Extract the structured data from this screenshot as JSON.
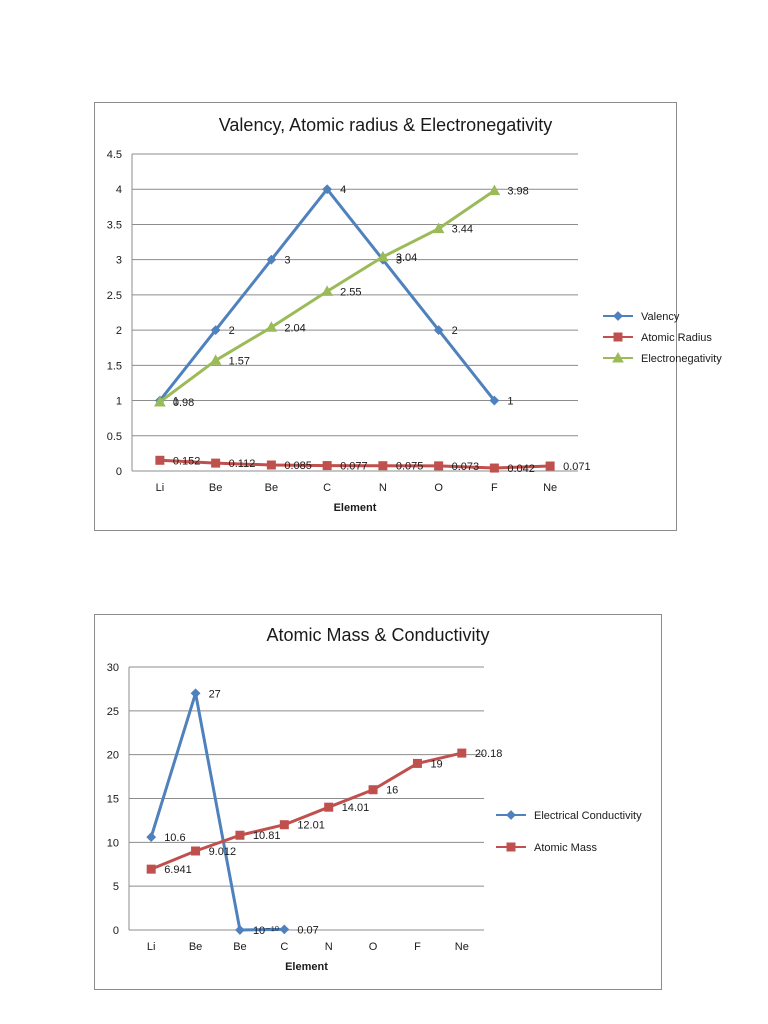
{
  "chart_data": [
    {
      "type": "line",
      "title": "Valency, Atomic radius & Electronegativity",
      "xlabel": "Element",
      "ylabel": "",
      "categories": [
        "Li",
        "Be",
        "Be",
        "C",
        "N",
        "O",
        "F",
        "Ne"
      ],
      "ylim": [
        0,
        4.5
      ],
      "yticks": [
        "0",
        "0.5",
        "1",
        "1.5",
        "2",
        "2.5",
        "3",
        "3.5",
        "4",
        "4.5"
      ],
      "grid": true,
      "legend_position": "right",
      "series": [
        {
          "name": "Valency",
          "color": "#4f81bd",
          "marker": "diamond",
          "values": [
            1,
            2,
            3,
            4,
            3,
            2,
            1,
            null
          ],
          "labels": [
            "1",
            "2",
            "3",
            "4",
            "3",
            "2",
            "1",
            ""
          ]
        },
        {
          "name": "Atomic Radius",
          "color": "#c0504d",
          "marker": "square",
          "values": [
            0.152,
            0.112,
            0.085,
            0.077,
            0.075,
            0.073,
            0.042,
            0.071
          ],
          "labels": [
            "0.152",
            "0.112",
            "0.085",
            "0.077",
            "0.075",
            "0.073",
            "0.042",
            "0.071"
          ]
        },
        {
          "name": "Electronegativity",
          "color": "#9bbb59",
          "marker": "triangle",
          "values": [
            0.98,
            1.57,
            2.04,
            2.55,
            3.04,
            3.44,
            3.98,
            null
          ],
          "labels": [
            "0.98",
            "1.57",
            "2.04",
            "2.55",
            "3.04",
            "3.44",
            "3.98",
            ""
          ]
        }
      ]
    },
    {
      "type": "line",
      "title": "Atomic Mass & Conductivity",
      "xlabel": "Element",
      "ylabel": "",
      "categories": [
        "Li",
        "Be",
        "Be",
        "C",
        "N",
        "O",
        "F",
        "Ne"
      ],
      "ylim": [
        0,
        30
      ],
      "yticks": [
        "0",
        "5",
        "10",
        "15",
        "20",
        "25",
        "30"
      ],
      "grid": true,
      "legend_position": "right",
      "series": [
        {
          "name": "Electrical Conductivity",
          "color": "#4f81bd",
          "marker": "diamond",
          "values": [
            10.6,
            27,
            0,
            0.07,
            null,
            null,
            null,
            null
          ],
          "labels": [
            "10.6",
            "27",
            "10⁻¹⁰",
            "0.07",
            "",
            "",
            "",
            ""
          ]
        },
        {
          "name": "Atomic Mass",
          "color": "#c0504d",
          "marker": "square",
          "values": [
            6.941,
            9.012,
            10.81,
            12.01,
            14.01,
            16,
            19,
            20.18
          ],
          "labels": [
            "6.941",
            "9.012",
            "10.81",
            "12.01",
            "14.01",
            "16",
            "19",
            "20.18"
          ]
        }
      ]
    }
  ]
}
